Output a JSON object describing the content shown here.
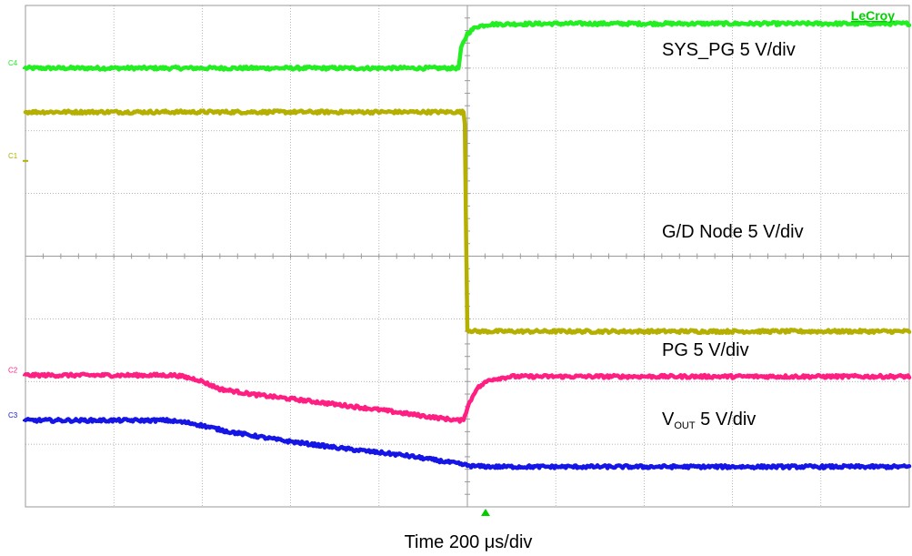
{
  "chart_data": {
    "type": "line",
    "title": "",
    "brand": "LeCroy",
    "xlabel": "Time 200 μs/div",
    "grid": true,
    "x_unit": "div",
    "y_unit": "div",
    "xlim": [
      0,
      10
    ],
    "ylim": [
      0,
      8
    ],
    "colors": {
      "grid": "#9a9a9a",
      "axis": "#9a9a9a",
      "trigger": "#00cc00",
      "brand": "#00d000"
    },
    "series": [
      {
        "name": "SYS_PG 5 V/div",
        "channel": "C4",
        "color": "#22ee22",
        "ref_level": 7.0,
        "points": [
          [
            0,
            7.0
          ],
          [
            4.9,
            7.0
          ],
          [
            4.93,
            7.32
          ],
          [
            5.0,
            7.55
          ],
          [
            5.1,
            7.66
          ],
          [
            5.25,
            7.7
          ],
          [
            6.0,
            7.71
          ],
          [
            10,
            7.71
          ]
        ]
      },
      {
        "name": "G/D Node 5 V/div",
        "channel": "C1",
        "color": "#b5b000",
        "ref_level": 5.52,
        "points": [
          [
            0,
            6.3
          ],
          [
            4.97,
            6.3
          ],
          [
            4.98,
            5.0
          ],
          [
            5.0,
            2.82
          ],
          [
            5.1,
            2.8
          ],
          [
            10,
            2.8
          ]
        ]
      },
      {
        "name": "PG 5 V/div",
        "channel": "C2",
        "color": "#ff1f82",
        "ref_level": 2.1,
        "points": [
          [
            0,
            2.1
          ],
          [
            1.7,
            2.1
          ],
          [
            1.95,
            2.03
          ],
          [
            2.2,
            1.88
          ],
          [
            2.6,
            1.79
          ],
          [
            3.2,
            1.69
          ],
          [
            4.0,
            1.55
          ],
          [
            4.5,
            1.45
          ],
          [
            4.9,
            1.38
          ],
          [
            4.95,
            1.38
          ],
          [
            5.02,
            1.65
          ],
          [
            5.1,
            1.88
          ],
          [
            5.25,
            2.03
          ],
          [
            5.5,
            2.08
          ],
          [
            10,
            2.08
          ]
        ]
      },
      {
        "name": "V_OUT 5 V/div",
        "label_main": "V",
        "label_sub": "OUT",
        "label_rest": " 5 V/div",
        "channel": "C3",
        "color": "#1515e6",
        "ref_level": 1.38,
        "points": [
          [
            0,
            1.38
          ],
          [
            1.6,
            1.38
          ],
          [
            1.9,
            1.33
          ],
          [
            2.3,
            1.2
          ],
          [
            2.9,
            1.06
          ],
          [
            3.6,
            0.93
          ],
          [
            4.3,
            0.82
          ],
          [
            4.8,
            0.71
          ],
          [
            5.05,
            0.65
          ],
          [
            5.3,
            0.64
          ],
          [
            10,
            0.64
          ]
        ]
      }
    ]
  }
}
